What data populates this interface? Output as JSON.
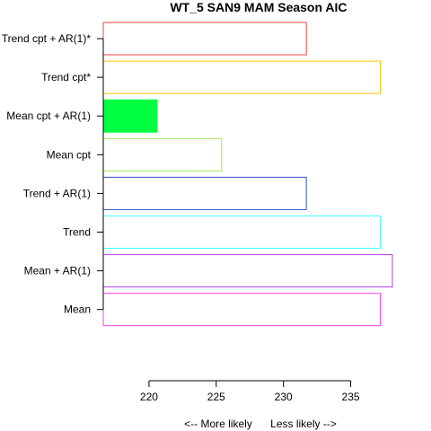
{
  "chart_data": {
    "type": "bar",
    "orientation": "horizontal",
    "title": "WT_5 SAN9 MAM Season AIC",
    "xlabel_left": "<--  More likely",
    "xlabel_right": "Less likely  -->",
    "ylabel": "",
    "categories": [
      "Trend cpt + AR(1)*",
      "Trend cpt*",
      "Mean cpt + AR(1)",
      "Mean cpt",
      "Trend + AR(1)",
      "Trend",
      "Mean + AR(1)",
      "Mean"
    ],
    "values": [
      231.7,
      237.2,
      220.6,
      225.4,
      231.7,
      237.2,
      238.1,
      237.2
    ],
    "colors": [
      "#ff4040",
      "#ffc000",
      "#00ff40",
      "#a0e850",
      "#3050c8",
      "#40ffff",
      "#b040ff",
      "#ff40e0"
    ],
    "filled": [
      false,
      false,
      true,
      false,
      false,
      false,
      false,
      false
    ],
    "xlim": [
      216.6,
      238.1
    ],
    "xticks": [
      220,
      225,
      230,
      235
    ],
    "grid": false,
    "legend": "none"
  }
}
